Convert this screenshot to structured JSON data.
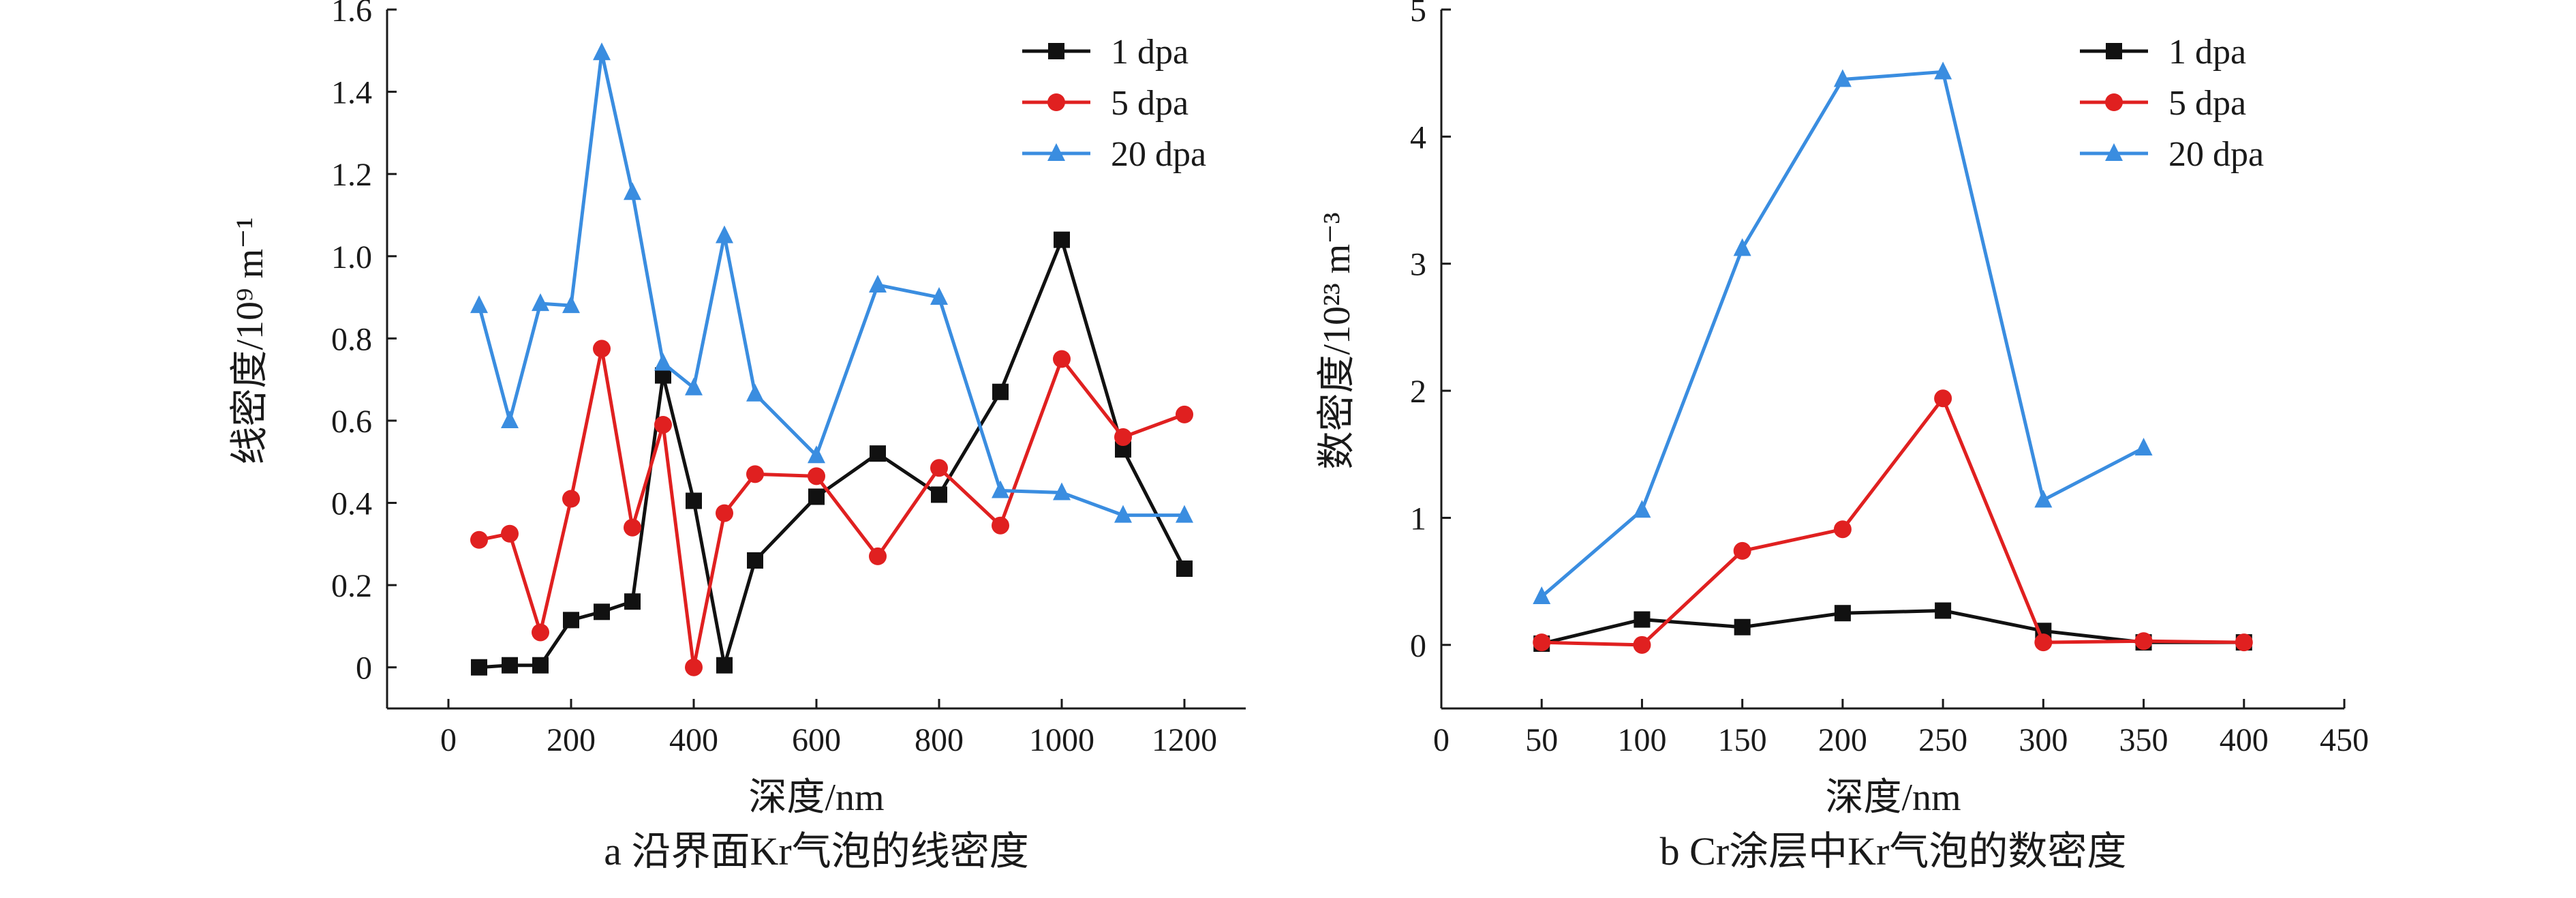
{
  "chart_data": [
    {
      "type": "line",
      "caption": "a  沿界面Kr气泡的线密度",
      "xlabel": "深度/nm",
      "ylabel": "线密度/10⁹ m⁻¹",
      "xlim": [
        -100,
        1300
      ],
      "ylim": [
        -0.1,
        1.6
      ],
      "xticks": [
        0,
        200,
        400,
        600,
        800,
        1000,
        1200
      ],
      "yticks": [
        0,
        0.2,
        0.4,
        0.6,
        0.8,
        1.0,
        1.2,
        1.4,
        1.6
      ],
      "ytick_labels": [
        "0",
        "0.2",
        "0.4",
        "0.6",
        "0.8",
        "1.0",
        "1.2",
        "1.4",
        "1.6"
      ],
      "legend_position": "top-right",
      "series": [
        {
          "name": "1 dpa",
          "color": "#111111",
          "marker": "square",
          "x": [
            50,
            100,
            150,
            200,
            250,
            300,
            350,
            400,
            450,
            500,
            600,
            700,
            800,
            900,
            1000,
            1100,
            1200
          ],
          "y": [
            0.0,
            0.005,
            0.005,
            0.115,
            0.135,
            0.16,
            0.71,
            0.405,
            0.005,
            0.26,
            0.415,
            0.52,
            0.42,
            0.67,
            1.04,
            0.53,
            0.24
          ]
        },
        {
          "name": "5 dpa",
          "color": "#e02020",
          "marker": "circle",
          "x": [
            50,
            100,
            150,
            200,
            250,
            300,
            350,
            400,
            450,
            500,
            600,
            700,
            800,
            900,
            1000,
            1100,
            1200
          ],
          "y": [
            0.31,
            0.325,
            0.085,
            0.41,
            0.775,
            0.34,
            0.59,
            0.0,
            0.375,
            0.47,
            0.465,
            0.27,
            0.485,
            0.345,
            0.75,
            0.56,
            0.615
          ]
        },
        {
          "name": "20 dpa",
          "color": "#3a8de0",
          "marker": "triangle",
          "x": [
            50,
            100,
            150,
            200,
            250,
            300,
            350,
            400,
            450,
            500,
            600,
            700,
            800,
            900,
            1000,
            1100,
            1200
          ],
          "y": [
            0.88,
            0.6,
            0.885,
            0.88,
            1.495,
            1.155,
            0.74,
            0.68,
            1.05,
            0.665,
            0.515,
            0.93,
            0.9,
            0.43,
            0.425,
            0.37,
            0.37
          ]
        }
      ]
    },
    {
      "type": "line",
      "caption": "b  Cr涂层中Kr气泡的数密度",
      "xlabel": "深度/nm",
      "ylabel": "数密度/10²³ m⁻³",
      "xlim": [
        0,
        450
      ],
      "ylim": [
        -0.5,
        5
      ],
      "xticks": [
        0,
        50,
        100,
        150,
        200,
        250,
        300,
        350,
        400,
        450
      ],
      "yticks": [
        0,
        1,
        2,
        3,
        4,
        5
      ],
      "ytick_labels": [
        "0",
        "1",
        "2",
        "3",
        "4",
        "5"
      ],
      "legend_position": "top-right",
      "series": [
        {
          "name": "1 dpa",
          "color": "#111111",
          "marker": "square",
          "x": [
            50,
            100,
            150,
            200,
            250,
            300,
            350,
            400
          ],
          "y": [
            0.01,
            0.2,
            0.14,
            0.25,
            0.27,
            0.11,
            0.02,
            0.02
          ]
        },
        {
          "name": "5 dpa",
          "color": "#e02020",
          "marker": "circle",
          "x": [
            50,
            100,
            150,
            200,
            250,
            300,
            350,
            400
          ],
          "y": [
            0.02,
            0.0,
            0.74,
            0.91,
            1.94,
            0.02,
            0.03,
            0.02
          ]
        },
        {
          "name": "20 dpa",
          "color": "#3a8de0",
          "marker": "triangle",
          "x": [
            50,
            100,
            150,
            200,
            250,
            300,
            350
          ],
          "y": [
            0.38,
            1.06,
            3.12,
            4.45,
            4.51,
            1.14,
            1.55
          ]
        }
      ]
    }
  ]
}
